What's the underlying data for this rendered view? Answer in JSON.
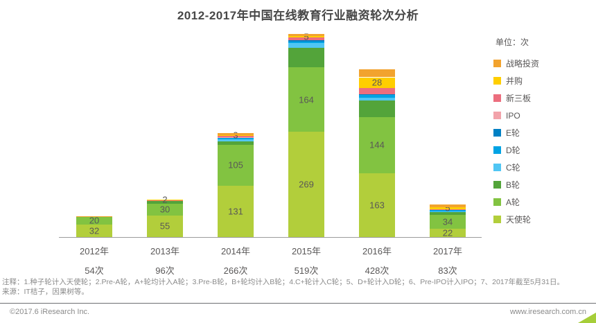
{
  "title": "2012-2017年中国在线教育行业融资轮次分析",
  "unit_label": "单位：次",
  "chart_data": {
    "type": "bar",
    "subtype": "stacked-vertical",
    "categories": [
      "2012年",
      "2013年",
      "2014年",
      "2015年",
      "2016年",
      "2017年"
    ],
    "category_totals": [
      "54次",
      "96次",
      "266次",
      "519次",
      "428次",
      "83次"
    ],
    "category_total_values": [
      54,
      96,
      266,
      519,
      428,
      83
    ],
    "series": [
      {
        "name": "天使轮",
        "color": "#B2CE3B",
        "values": [
          32,
          55,
          131,
          269,
          163,
          22
        ]
      },
      {
        "name": "A轮",
        "color": "#82C341",
        "values": [
          20,
          30,
          105,
          164,
          144,
          34
        ]
      },
      {
        "name": "B轮",
        "color": "#53A43A",
        "values": [
          0,
          7,
          8,
          50,
          42,
          7
        ]
      },
      {
        "name": "C轮",
        "color": "#50C6F4",
        "values": [
          0,
          1,
          5,
          12,
          6,
          3
        ]
      },
      {
        "name": "D轮",
        "color": "#00A3E4",
        "values": [
          0,
          0,
          4,
          5,
          7,
          3
        ]
      },
      {
        "name": "E轮",
        "color": "#0080C4",
        "values": [
          0,
          0,
          0,
          2,
          2,
          0
        ]
      },
      {
        "name": "IPO",
        "color": "#F2A3AA",
        "values": [
          1,
          0,
          2,
          0,
          0,
          0
        ]
      },
      {
        "name": "新三板",
        "color": "#EC6E7E",
        "values": [
          0,
          1,
          3,
          7,
          16,
          2
        ]
      },
      {
        "name": "并购",
        "color": "#FFCE00",
        "values": [
          0,
          2,
          3,
          5,
          28,
          5
        ]
      },
      {
        "name": "战略投资",
        "color": "#F2A32E",
        "values": [
          1,
          0,
          5,
          5,
          20,
          7
        ]
      }
    ],
    "labeled_series": [
      "天使轮",
      "A轮",
      "并购"
    ],
    "visible_segment_labels": {
      "2012年": [
        32,
        20
      ],
      "2013年": [
        55,
        30,
        2
      ],
      "2014年": [
        131,
        105,
        3
      ],
      "2015年": [
        269,
        164,
        5
      ],
      "2016年": [
        163,
        144,
        28
      ],
      "2017年": [
        22,
        34,
        5
      ]
    },
    "legend_top_to_bottom": [
      "战略投资",
      "并购",
      "新三板",
      "IPO",
      "E轮",
      "D轮",
      "C轮",
      "B轮",
      "A轮",
      "天使轮"
    ],
    "legend_position": "right",
    "grid": "off",
    "ylim": [
      0,
      527
    ]
  },
  "notes": {
    "line1": "注释：1.种子轮计入天使轮；2.Pre-A轮，A+轮均计入A轮；3.Pre-B轮，B+轮均计入B轮；4.C+轮计入C轮；5、D+轮计入D轮；6、Pre-IPO计入IPO；7、2017年截至5月31日。",
    "line2": "来源：IT桔子，因果树等。"
  },
  "footer": {
    "copyright": "©2017.6 iResearch Inc.",
    "website": "www.iresearch.com.cn",
    "accent_color": "#A6CE39"
  },
  "colors": {
    "title_text": "#474747",
    "axis_line": "#9B9B9B",
    "label_text": "#595757",
    "note_text": "#8A8A8A"
  }
}
